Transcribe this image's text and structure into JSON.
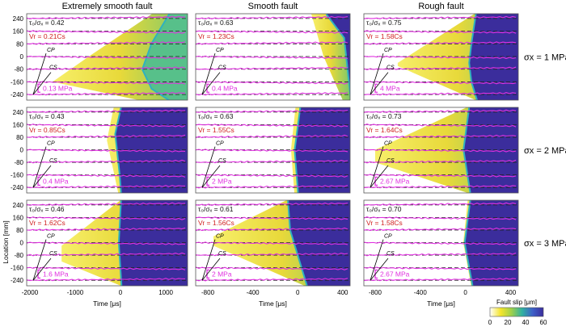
{
  "chart_data": {
    "type": "heatmap",
    "columns": [
      {
        "title": "Extremely smooth fault",
        "xlim": [
          -2070,
          1480
        ],
        "xticks": [
          -2000,
          -1000,
          0,
          1000
        ]
      },
      {
        "title": "Smooth fault",
        "xlim": [
          -908,
          466
        ],
        "xticks": [
          -800,
          -400,
          0,
          400
        ]
      },
      {
        "title": "Rough fault",
        "xlim": [
          -900,
          468
        ],
        "xticks": [
          -800,
          -400,
          0,
          400
        ]
      }
    ],
    "rows": [
      {
        "label": "σx = 1 MPa"
      },
      {
        "label": "σx = 2 MPa"
      },
      {
        "label": "σx = 3 MPa"
      }
    ],
    "ylim": [
      -275,
      270
    ],
    "yticks": [
      240,
      160,
      80,
      0,
      -80,
      -160,
      -240
    ],
    "xlabel": "Time [μs]",
    "ylabel": "Location [mm]",
    "colorbar": {
      "label": "Fault slip [μm]",
      "range": [
        0,
        60
      ],
      "ticks": [
        0,
        20,
        40,
        60
      ],
      "colors": [
        "#ffffff",
        "#f5e52a",
        "#9fd04a",
        "#2fb1a0",
        "#3d5fc8",
        "#3b2d9c"
      ]
    },
    "panels": [
      [
        {
          "ratio": "τ₀/σₓ = 0.42",
          "vr": "Vr = 0.21Cs",
          "scale": "0.13 MPa",
          "front": [
            [
              270,
              1100
            ],
            [
              80,
              700
            ],
            [
              -80,
              500
            ],
            [
              -200,
              700
            ],
            [
              -275,
              1100
            ]
          ],
          "partial": [
            [
              270,
              700
            ],
            [
              0,
              -700
            ],
            [
              -160,
              -1500
            ],
            [
              -275,
              400
            ]
          ]
        },
        {
          "ratio": "τ₀/σₓ = 0.63",
          "vr": "Vr = 1.23Cs",
          "scale": "0.4 MPa",
          "front": [
            [
              270,
              260
            ],
            [
              120,
              420
            ],
            [
              -275,
              480
            ]
          ],
          "partial": [
            [
              270,
              120
            ],
            [
              0,
              230
            ],
            [
              -275,
              400
            ]
          ]
        },
        {
          "ratio": "τ₀/σₓ = 0.75",
          "vr": "Vr = 1.58Cs",
          "scale": "4 MPa",
          "front": [
            [
              270,
              100
            ],
            [
              80,
              60
            ],
            [
              -40,
              40
            ],
            [
              -160,
              60
            ],
            [
              -275,
              110
            ]
          ],
          "partial": [
            [
              270,
              80
            ],
            [
              -40,
              -600
            ],
            [
              -60,
              -600
            ],
            [
              -275,
              90
            ]
          ]
        }
      ],
      [
        {
          "ratio": "τ₀/σₓ = 0.43",
          "vr": "Vr = 0.85Cs",
          "scale": "0.4 MPa",
          "front": [
            [
              270,
              30
            ],
            [
              100,
              -100
            ],
            [
              0,
              -60
            ],
            [
              -160,
              0
            ],
            [
              -275,
              30
            ]
          ],
          "partial": [
            [
              270,
              -150
            ],
            [
              60,
              -300
            ],
            [
              -275,
              -50
            ]
          ]
        },
        {
          "ratio": "τ₀/σₓ = 0.63",
          "vr": "Vr = 1.55Cs",
          "scale": "2 MPa",
          "front": [
            [
              270,
              30
            ],
            [
              0,
              -20
            ],
            [
              -275,
              10
            ]
          ],
          "partial": [
            [
              270,
              -20
            ],
            [
              0,
              -60
            ],
            [
              -275,
              -30
            ]
          ]
        },
        {
          "ratio": "τ₀/σₓ = 0.73",
          "vr": "Vr = 1.64Cs",
          "scale": "2.67 MPa",
          "front": [
            [
              270,
              40
            ],
            [
              0,
              -10
            ],
            [
              -275,
              50
            ]
          ],
          "partial": [
            [
              270,
              10
            ],
            [
              0,
              -800
            ],
            [
              -80,
              -800
            ],
            [
              -275,
              20
            ]
          ]
        }
      ],
      [
        {
          "ratio": "τ₀/σₓ = 0.46",
          "vr": "Vr = 1.62Cs",
          "scale": "1.6 MPa",
          "front": [
            [
              270,
              30
            ],
            [
              0,
              -20
            ],
            [
              -275,
              40
            ]
          ],
          "partial": [
            [
              270,
              0
            ],
            [
              -20,
              -1300
            ],
            [
              -120,
              -1300
            ],
            [
              -275,
              10
            ]
          ]
        },
        {
          "ratio": "τ₀/σₓ = 0.61",
          "vr": "Vr = 1.56Cs",
          "scale": "2 MPa",
          "front": [
            [
              270,
              -80
            ],
            [
              80,
              -60
            ],
            [
              -275,
              90
            ]
          ],
          "partial": [
            [
              270,
              -100
            ],
            [
              40,
              -750
            ],
            [
              -20,
              -750
            ],
            [
              -275,
              60
            ]
          ]
        },
        {
          "ratio": "τ₀/σₓ = 0.70",
          "vr": "Vr = 1.58Cs",
          "scale": "2.67 MPa",
          "front": [
            [
              270,
              50
            ],
            [
              0,
              0
            ],
            [
              -275,
              70
            ]
          ],
          "partial": [
            [
              270,
              20
            ],
            [
              0,
              -20
            ],
            [
              -275,
              50
            ]
          ]
        }
      ]
    ],
    "wave_labels": {
      "cp": "CP",
      "cs": "CS"
    }
  }
}
